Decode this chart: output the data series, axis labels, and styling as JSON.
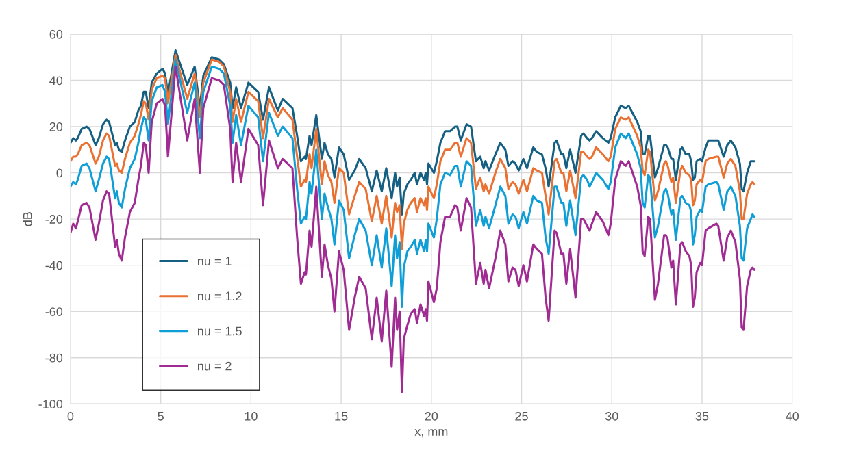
{
  "chart_data": {
    "type": "line",
    "xlabel": "x, mm",
    "ylabel": "dB",
    "xlim": [
      0,
      40
    ],
    "xticks": [
      0,
      5,
      10,
      15,
      20,
      25,
      30,
      35,
      40
    ],
    "ylim": [
      -100,
      60
    ],
    "yticks": [
      -100,
      -80,
      -60,
      -40,
      -20,
      0,
      20,
      40,
      60
    ],
    "grid": true,
    "legend": "bottom left",
    "marker": "none",
    "line_style": "solid",
    "x": [
      0,
      0.15,
      0.3,
      0.4,
      0.62,
      0.89,
      1.05,
      1.39,
      1.57,
      1.8,
      2.0,
      2.14,
      2.47,
      2.57,
      2.68,
      2.84,
      3.02,
      3.29,
      3.56,
      3.76,
      3.9,
      4.06,
      4.17,
      4.33,
      4.5,
      4.78,
      5.1,
      5.24,
      5.4,
      5.82,
      6.47,
      6.88,
      7.17,
      7.36,
      7.83,
      8.24,
      8.5,
      8.85,
      8.98,
      9.18,
      9.45,
      9.86,
      10.4,
      10.67,
      11.0,
      11.49,
      11.76,
      12.3,
      12.56,
      12.77,
      12.98,
      13.05,
      13.25,
      13.36,
      13.62,
      13.93,
      14.08,
      14.27,
      14.46,
      14.63,
      14.88,
      15.14,
      15.44,
      15.75,
      16.0,
      16.36,
      16.7,
      16.97,
      17.25,
      17.5,
      17.8,
      17.99,
      18.1,
      18.24,
      18.37,
      18.47,
      18.67,
      18.86,
      19.08,
      19.2,
      19.4,
      19.6,
      19.69,
      19.76,
      19.84,
      20.14,
      20.3,
      20.5,
      20.76,
      21.04,
      21.31,
      21.44,
      21.63,
      21.95,
      22.2,
      22.47,
      22.71,
      22.9,
      23.0,
      23.2,
      23.55,
      23.82,
      24.1,
      24.27,
      24.5,
      24.66,
      24.84,
      25.1,
      25.3,
      25.65,
      25.84,
      26.13,
      26.33,
      26.5,
      26.83,
      26.94,
      27.2,
      27.32,
      27.48,
      27.69,
      27.99,
      28.3,
      28.43,
      28.63,
      28.77,
      28.9,
      29.13,
      29.5,
      29.81,
      29.94,
      30.19,
      30.5,
      30.77,
      30.94,
      31.41,
      31.6,
      31.71,
      31.82,
      32.02,
      32.12,
      32.39,
      32.56,
      32.9,
      33.0,
      33.1,
      33.3,
      33.4,
      33.55,
      33.8,
      33.9,
      34.1,
      34.3,
      34.4,
      34.5,
      34.6,
      34.7,
      34.9,
      35.0,
      35.2,
      35.35,
      35.8,
      35.9,
      36.2,
      36.4,
      36.6,
      36.85,
      37.1,
      37.2,
      37.3,
      37.5,
      37.7,
      37.8,
      37.9
    ],
    "series": [
      {
        "name": "nu = 1",
        "color": "#156082",
        "values": [
          13,
          15,
          14,
          15,
          19,
          20,
          19,
          12,
          15,
          21,
          23,
          22,
          12,
          13,
          10,
          9,
          14,
          20,
          22,
          27,
          29,
          35,
          35,
          28,
          39,
          43,
          45,
          43,
          34,
          53,
          38,
          46,
          28,
          42,
          50,
          49,
          47,
          39,
          28,
          37,
          28,
          39,
          35,
          23,
          37,
          27,
          32,
          28,
          16,
          5,
          7,
          6,
          16,
          12,
          25,
          6,
          13,
          8,
          6,
          -2,
          11,
          8,
          -3,
          1,
          6,
          2,
          -8,
          1,
          -8,
          2,
          -11,
          0,
          -6,
          -2,
          -18,
          -9,
          -5,
          -3,
          0,
          -5,
          0,
          -3,
          0,
          -5,
          4,
          0,
          5,
          13,
          18,
          18,
          20,
          20,
          14,
          21,
          20,
          5,
          7,
          2,
          5,
          1,
          8,
          13,
          10,
          3,
          5,
          4,
          1,
          6,
          2,
          11,
          9,
          8,
          2,
          -6,
          13,
          14,
          8,
          8,
          2,
          10,
          0,
          16,
          17,
          15,
          14,
          15,
          18,
          15,
          13,
          15,
          24,
          29,
          28,
          29,
          22,
          18,
          8,
          8,
          16,
          16,
          -2,
          2,
          12,
          12,
          11,
          6,
          6,
          -3,
          10,
          11,
          8,
          8,
          5,
          -3,
          -2,
          5,
          6,
          5,
          11,
          14,
          14,
          14,
          7,
          12,
          14,
          11,
          4,
          -7,
          -8,
          0,
          5,
          5,
          5
        ]
      },
      {
        "name": "nu = 1.2",
        "color": "#e97132",
        "values": [
          5,
          7,
          7,
          8,
          12,
          13,
          12,
          4,
          7,
          14,
          17,
          16,
          3,
          4,
          1,
          0,
          6,
          13,
          16,
          21,
          25,
          31,
          30,
          23,
          36,
          41,
          42,
          41,
          30,
          51,
          32,
          43,
          24,
          39,
          49,
          48,
          46,
          35,
          22,
          32,
          22,
          35,
          31,
          15,
          32,
          24,
          28,
          23,
          7,
          -6,
          -3,
          -4,
          8,
          2,
          19,
          -5,
          5,
          -1,
          -4,
          -13,
          2,
          0,
          -18,
          -10,
          -4,
          -7,
          -21,
          -10,
          -22,
          -10,
          -28,
          -13,
          -17,
          -14,
          -33,
          -22,
          -16,
          -13,
          -11,
          -17,
          -11,
          -14,
          -11,
          -16,
          -6,
          -11,
          -5,
          5,
          10,
          10,
          13,
          13,
          7,
          15,
          13,
          -7,
          -2,
          -8,
          -5,
          -9,
          0,
          6,
          2,
          -7,
          -4,
          -5,
          -9,
          -3,
          -8,
          2,
          1,
          0,
          -10,
          -18,
          5,
          6,
          0,
          0,
          -8,
          1,
          -11,
          9,
          9,
          7,
          6,
          7,
          11,
          8,
          5,
          7,
          19,
          24,
          23,
          24,
          16,
          11,
          1,
          -1,
          10,
          9,
          -12,
          -8,
          4,
          5,
          3,
          -4,
          -2,
          -13,
          1,
          3,
          0,
          -1,
          -3,
          -14,
          -12,
          -5,
          -3,
          -4,
          5,
          6,
          7,
          7,
          -2,
          4,
          6,
          3,
          -8,
          -20,
          -20,
          -9,
          -5,
          -4,
          -5
        ]
      },
      {
        "name": "nu = 1.5",
        "color": "#0f9ed5",
        "values": [
          -6,
          -4,
          -5,
          -3,
          3,
          4,
          2,
          -8,
          -3,
          4,
          7,
          6,
          -11,
          -8,
          -13,
          -15,
          -7,
          2,
          6,
          13,
          19,
          24,
          23,
          14,
          31,
          37,
          38,
          35,
          21,
          49,
          26,
          39,
          15,
          35,
          46,
          45,
          43,
          29,
          13,
          25,
          12,
          29,
          24,
          5,
          26,
          16,
          20,
          15,
          -7,
          -22,
          -19,
          -20,
          -4,
          -9,
          10,
          -20,
          -9,
          -15,
          -20,
          -31,
          -12,
          -16,
          -37,
          -27,
          -20,
          -25,
          -40,
          -27,
          -41,
          -24,
          -49,
          -27,
          -37,
          -30,
          -58,
          -41,
          -34,
          -32,
          -29,
          -35,
          -29,
          -34,
          -29,
          -34,
          -22,
          -28,
          -20,
          -5,
          0,
          -1,
          3,
          3,
          -6,
          5,
          3,
          -23,
          -16,
          -23,
          -19,
          -24,
          -14,
          -6,
          -10,
          -22,
          -18,
          -19,
          -24,
          -17,
          -22,
          -10,
          -12,
          -13,
          -28,
          -35,
          -6,
          -6,
          -13,
          -13,
          -23,
          -12,
          -27,
          -2,
          -1,
          -3,
          -6,
          -4,
          0,
          -3,
          -7,
          -4,
          11,
          17,
          15,
          17,
          8,
          2,
          -13,
          -15,
          -1,
          -2,
          -28,
          -23,
          -8,
          -7,
          -9,
          -18,
          -16,
          -29,
          -11,
          -10,
          -13,
          -14,
          -17,
          -31,
          -27,
          -19,
          -16,
          -17,
          -6,
          -5,
          -4,
          -5,
          -16,
          -8,
          -6,
          -10,
          -23,
          -37,
          -38,
          -24,
          -20,
          -18,
          -19
        ]
      },
      {
        "name": "nu = 2",
        "color": "#a02b93",
        "values": [
          -26,
          -22,
          -24,
          -21,
          -14,
          -13,
          -15,
          -29,
          -22,
          -12,
          -8,
          -9,
          -32,
          -29,
          -35,
          -38,
          -28,
          -17,
          -13,
          -3,
          3,
          13,
          12,
          0,
          22,
          30,
          32,
          29,
          7,
          46,
          14,
          32,
          0,
          28,
          41,
          40,
          38,
          19,
          -4,
          13,
          -4,
          19,
          12,
          -14,
          14,
          2,
          6,
          2,
          -28,
          -48,
          -43,
          -44,
          -25,
          -32,
          -6,
          -45,
          -31,
          -40,
          -46,
          -60,
          -34,
          -42,
          -68,
          -54,
          -45,
          -50,
          -72,
          -54,
          -73,
          -51,
          -84,
          -54,
          -68,
          -60,
          -95,
          -72,
          -66,
          -61,
          -59,
          -65,
          -57,
          -62,
          -59,
          -64,
          -47,
          -56,
          -50,
          -30,
          -19,
          -19,
          -14,
          -15,
          -25,
          -11,
          -15,
          -48,
          -39,
          -48,
          -42,
          -50,
          -37,
          -25,
          -31,
          -47,
          -41,
          -42,
          -49,
          -40,
          -47,
          -31,
          -33,
          -35,
          -54,
          -64,
          -25,
          -26,
          -35,
          -35,
          -48,
          -33,
          -54,
          -20,
          -20,
          -23,
          -25,
          -22,
          -17,
          -21,
          -27,
          -22,
          -3,
          5,
          3,
          5,
          -6,
          -14,
          -34,
          -36,
          -19,
          -20,
          -55,
          -48,
          -27,
          -27,
          -29,
          -41,
          -38,
          -57,
          -31,
          -30,
          -34,
          -36,
          -40,
          -58,
          -54,
          -43,
          -39,
          -40,
          -25,
          -24,
          -22,
          -23,
          -38,
          -28,
          -25,
          -30,
          -46,
          -67,
          -68,
          -49,
          -42,
          -41,
          -42
        ]
      }
    ]
  }
}
